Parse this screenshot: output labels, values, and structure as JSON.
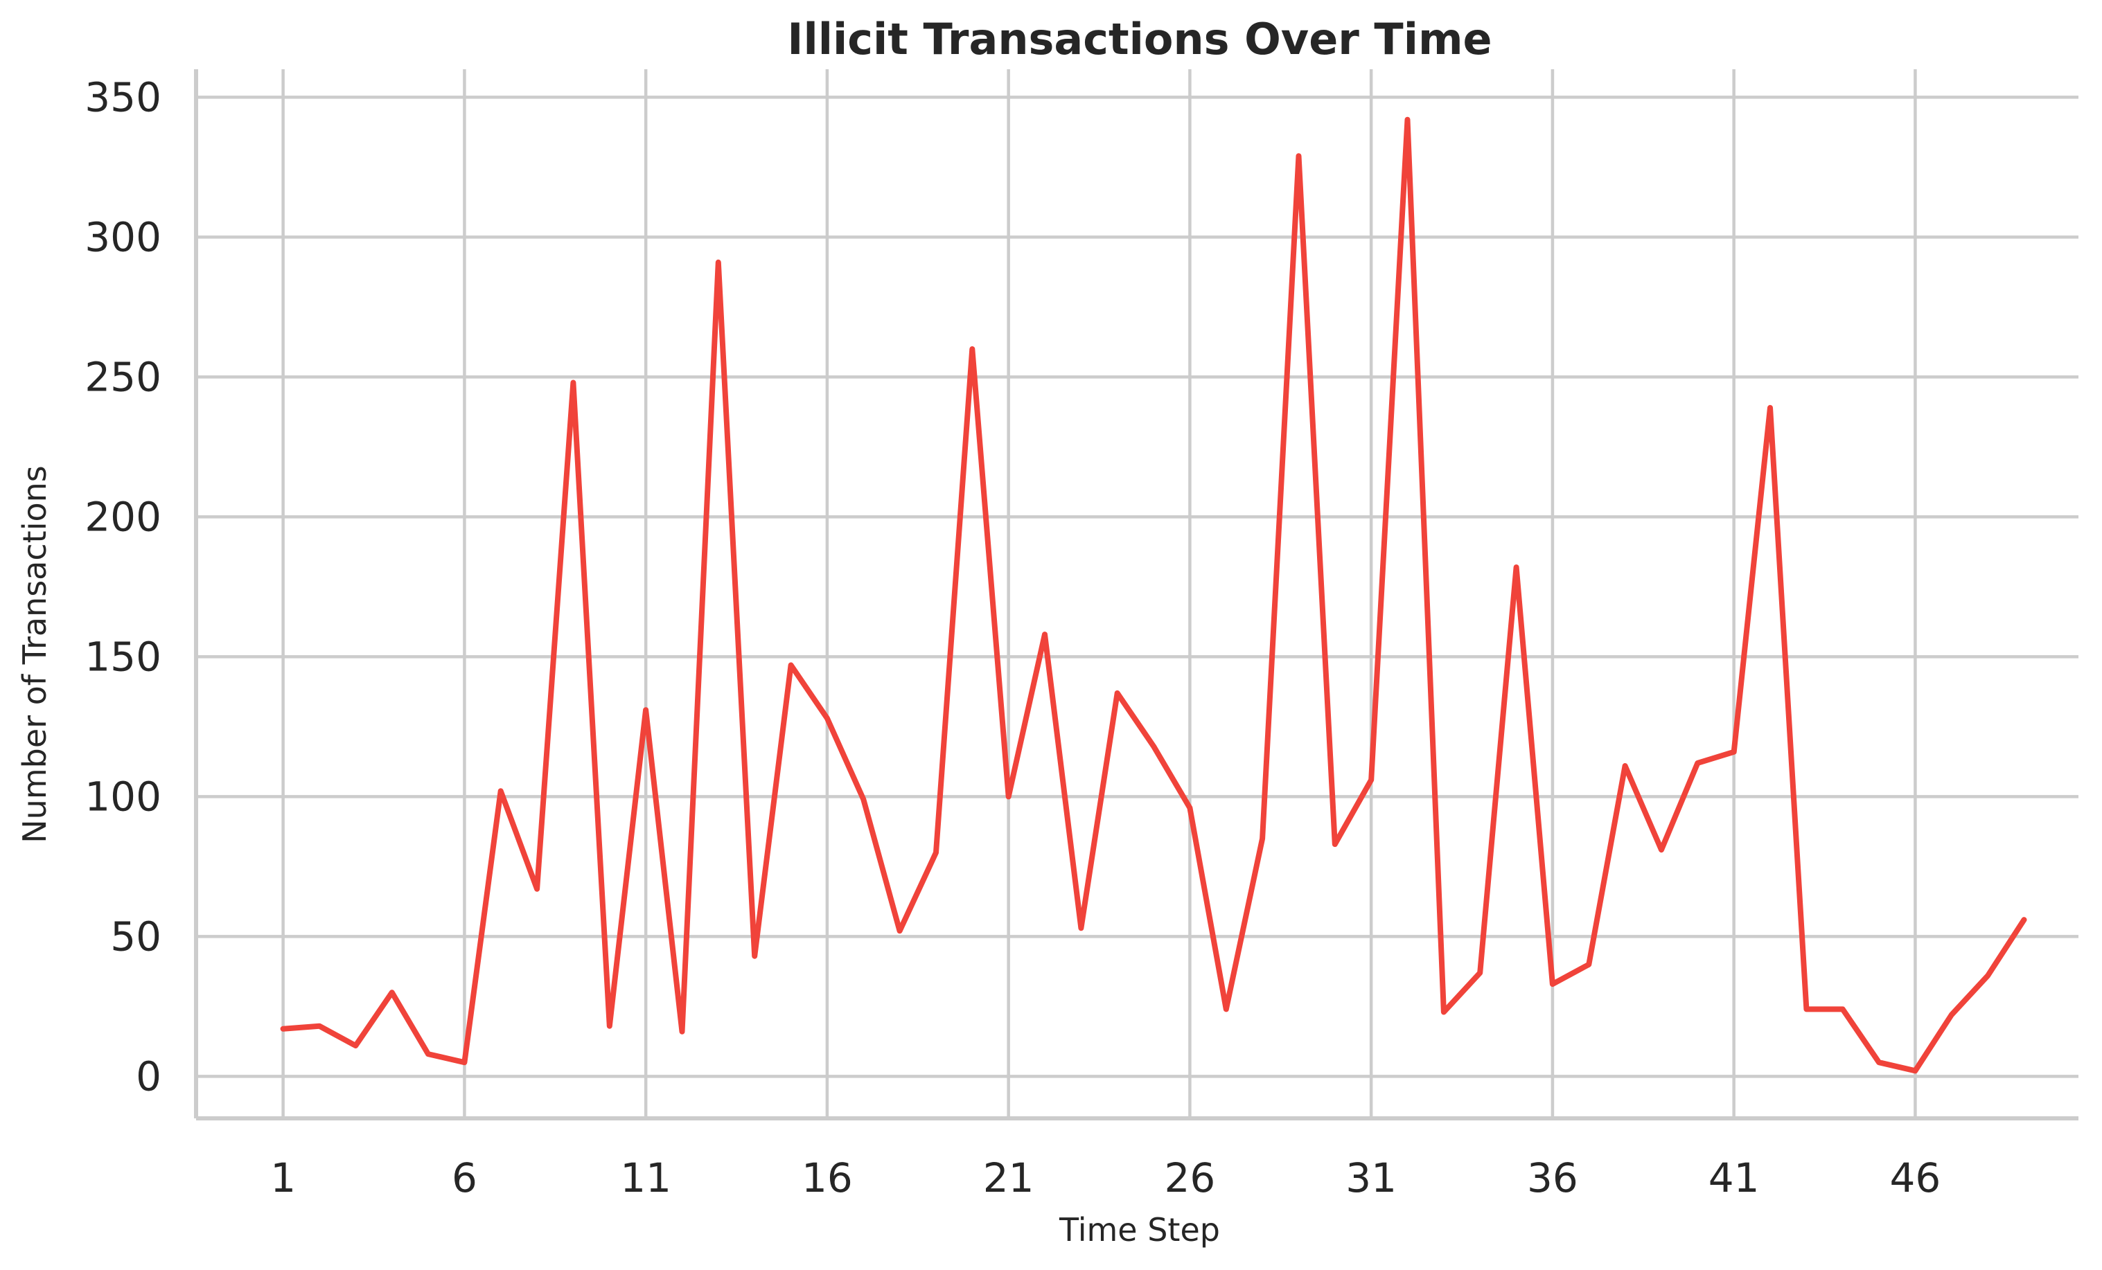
{
  "chart_data": {
    "type": "line",
    "title": "Illicit Transactions Over Time",
    "xlabel": "Time Step",
    "ylabel": "Number of Transactions",
    "xlim": [
      -1.4,
      50.5
    ],
    "ylim": [
      -15,
      360
    ],
    "xticks": [
      1,
      6,
      11,
      16,
      21,
      26,
      31,
      36,
      41,
      46
    ],
    "yticks": [
      0,
      50,
      100,
      150,
      200,
      250,
      300,
      350
    ],
    "grid": true,
    "legend": "none",
    "line_color": "#f0433a",
    "x": [
      1,
      2,
      3,
      4,
      5,
      6,
      7,
      8,
      9,
      10,
      11,
      12,
      13,
      14,
      15,
      16,
      17,
      18,
      19,
      20,
      21,
      22,
      23,
      24,
      25,
      26,
      27,
      28,
      29,
      30,
      31,
      32,
      33,
      34,
      35,
      36,
      37,
      38,
      39,
      40,
      41,
      42,
      43,
      44,
      45,
      46,
      47,
      48,
      49
    ],
    "series": [
      {
        "values": [
          17,
          18,
          11,
          30,
          8,
          5,
          102,
          67,
          248,
          18,
          131,
          16,
          291,
          43,
          147,
          128,
          99,
          52,
          80,
          260,
          100,
          158,
          53,
          137,
          118,
          96,
          24,
          85,
          329,
          83,
          106,
          342,
          23,
          37,
          182,
          33,
          40,
          111,
          81,
          112,
          116,
          239,
          24,
          24,
          5,
          2,
          22,
          36,
          56
        ]
      }
    ]
  }
}
